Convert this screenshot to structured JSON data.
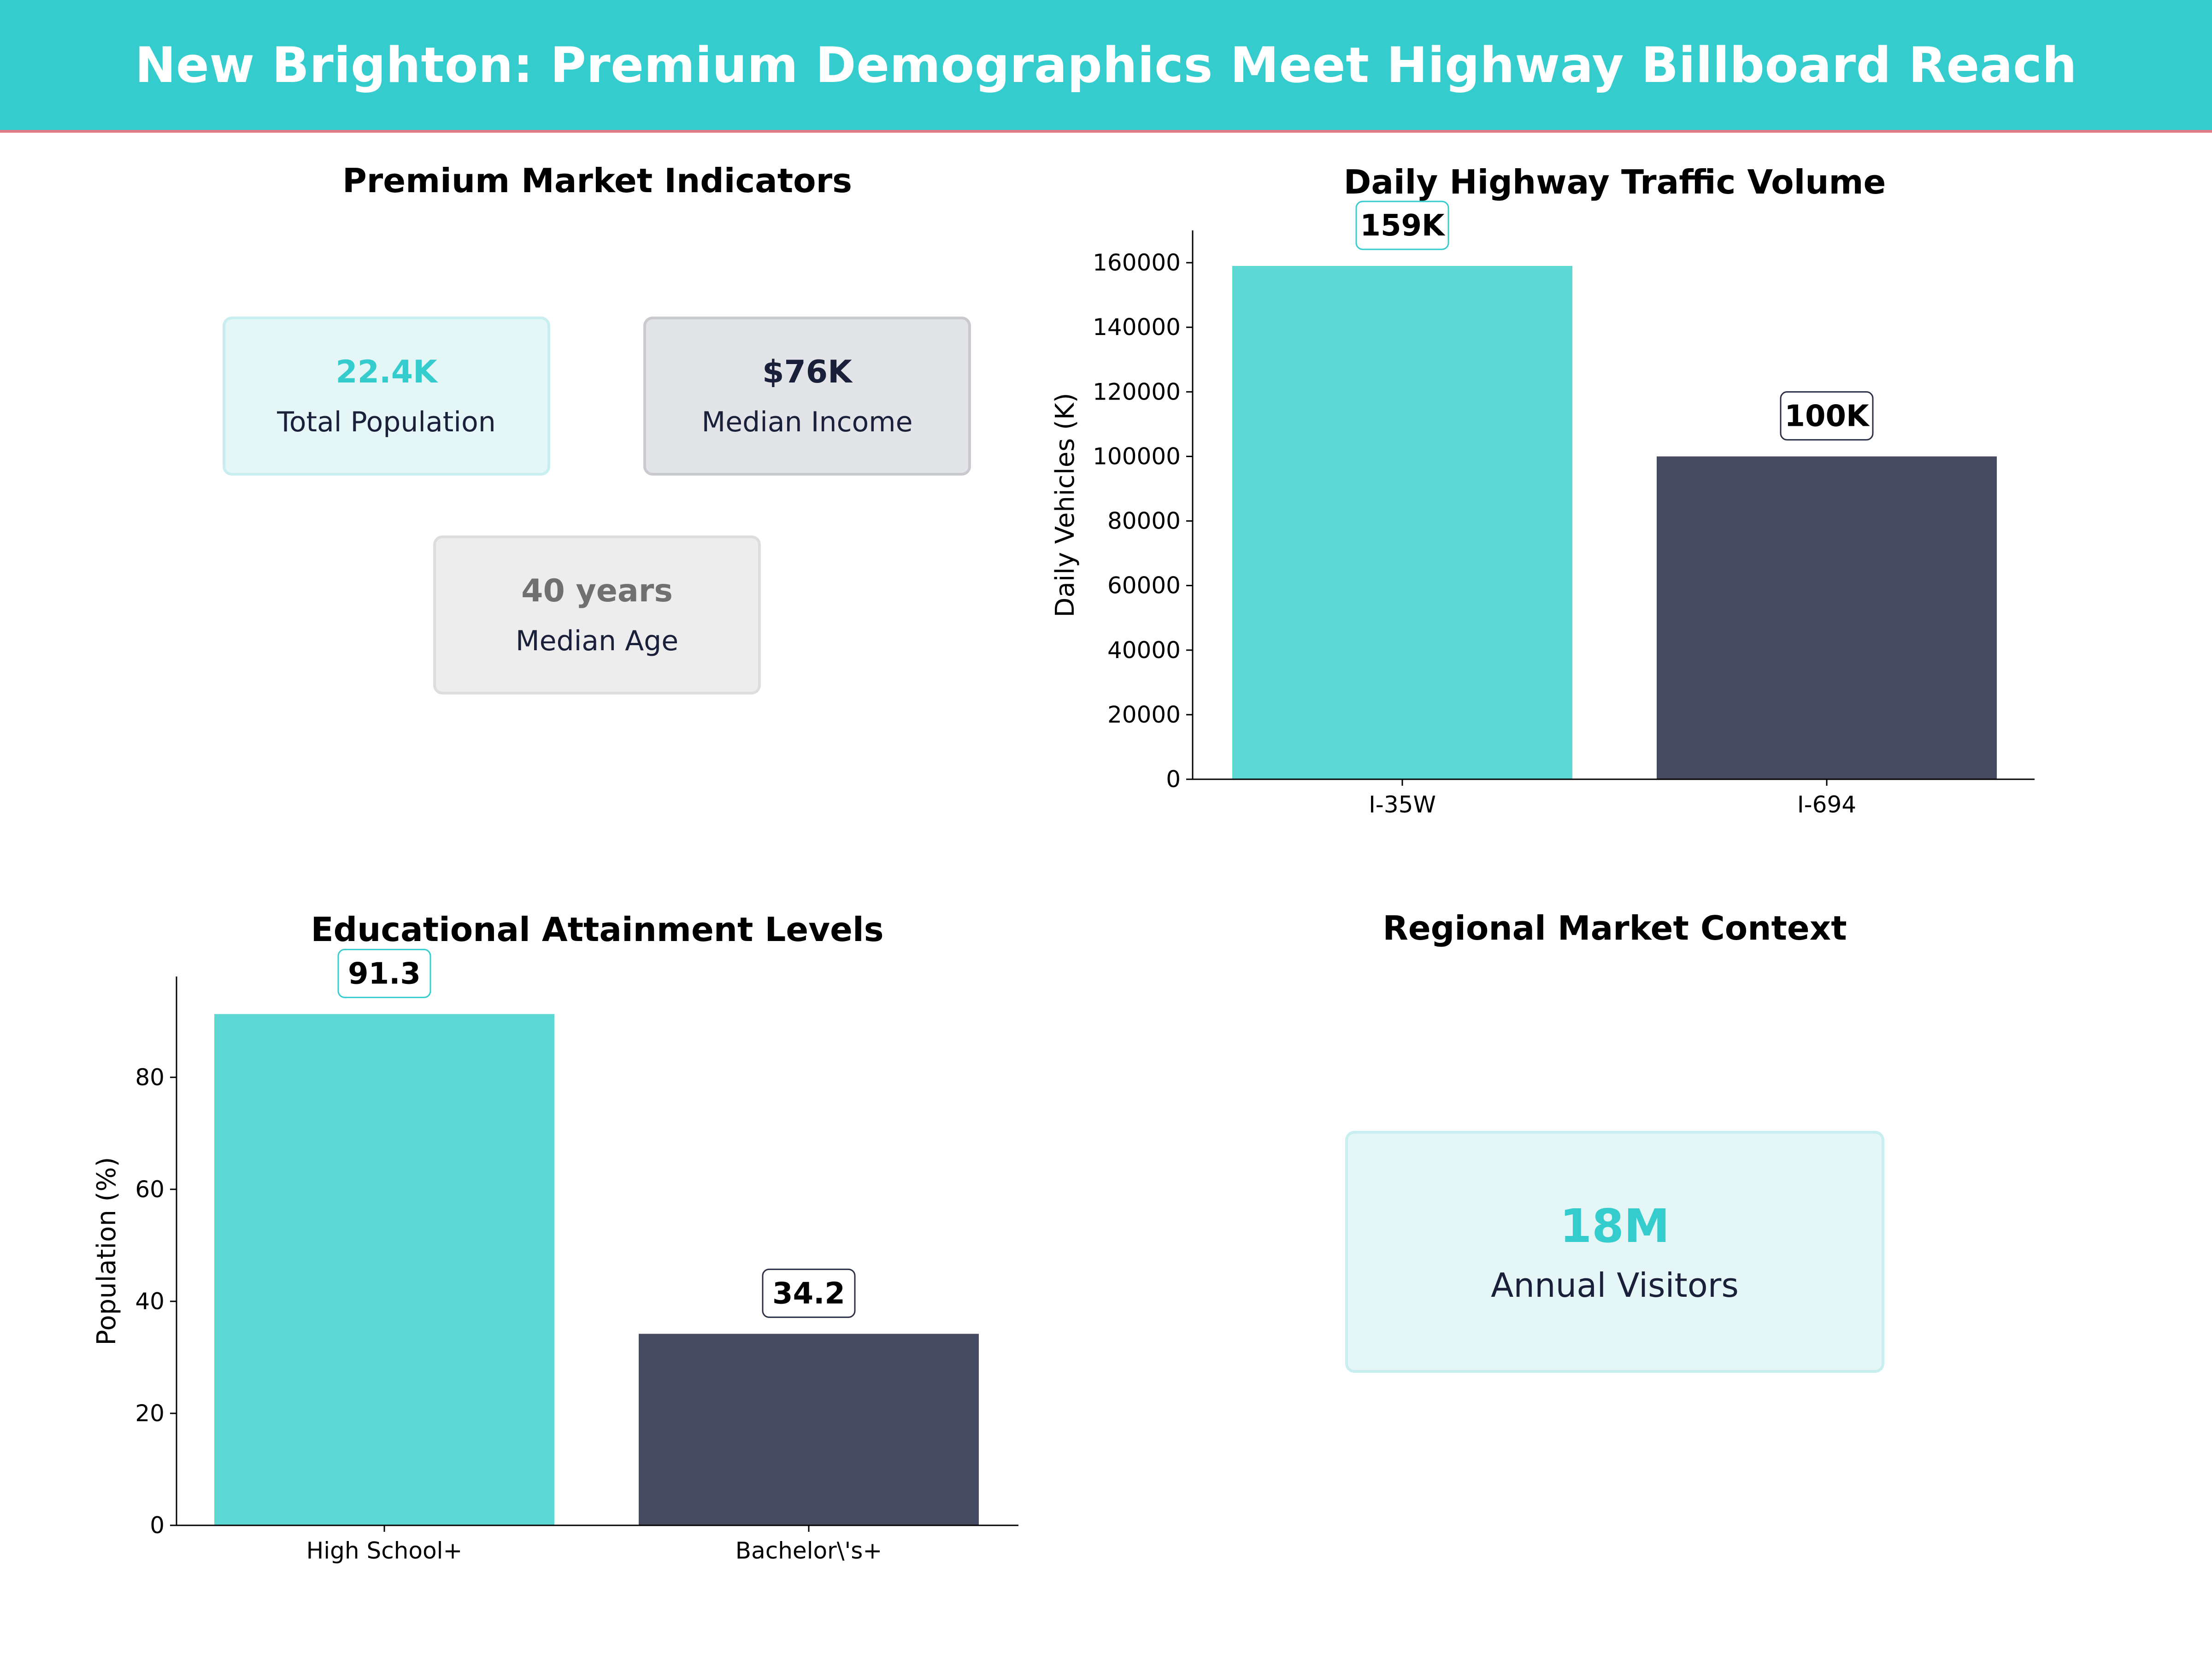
{
  "header": {
    "title": "New Brighton: Premium Demographics Meet Highway Billboard Reach"
  },
  "indicators": {
    "title": "Premium Market Indicators",
    "cards": [
      {
        "value": "22.4K",
        "label": "Total Population",
        "color": "#35CCCD"
      },
      {
        "value": "$76K",
        "label": "Median Income",
        "color": "#1A1F3A"
      },
      {
        "value": "40 years",
        "label": "Median Age",
        "color": "#707070"
      }
    ]
  },
  "regional": {
    "title": "Regional Market Context",
    "value": "18M",
    "label": "Annual Visitors"
  },
  "colors": {
    "accent": "#35CCCD",
    "bar_primary": "#5DD8D5",
    "bar_secondary": "#464A60",
    "banner_underline": "#E07A86"
  },
  "chart_data": [
    {
      "type": "bar",
      "title": "Daily Highway Traffic Volume",
      "ylabel": "Daily Vehicles (K)",
      "categories": [
        "I-35W",
        "I-694"
      ],
      "values": [
        159000,
        100000
      ],
      "data_labels": [
        "159K",
        "100K"
      ],
      "ylim": [
        0,
        170000
      ],
      "yticks": [
        0,
        20000,
        40000,
        60000,
        80000,
        100000,
        120000,
        140000,
        160000
      ],
      "grid": false
    },
    {
      "type": "bar",
      "title": "Educational Attainment Levels",
      "ylabel": "Population (%)",
      "categories": [
        "High School+",
        "Bachelor\\'s+"
      ],
      "values": [
        91.3,
        34.2
      ],
      "data_labels": [
        "91.3",
        "34.2"
      ],
      "ylim": [
        0,
        98
      ],
      "yticks": [
        0,
        20,
        40,
        60,
        80
      ],
      "grid": false
    }
  ]
}
